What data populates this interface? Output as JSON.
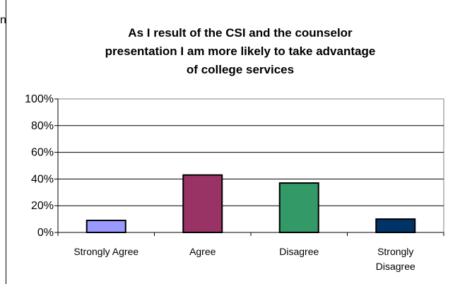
{
  "edge_text": "n",
  "chart_data": {
    "type": "bar",
    "title_lines": [
      "As I result of the CSI and the counselor",
      "presentation I am more likely to take advantage",
      "of college services"
    ],
    "categories": [
      [
        "Strongly Agree"
      ],
      [
        "Agree"
      ],
      [
        "Disagree"
      ],
      [
        "Strongly",
        "Disagree"
      ]
    ],
    "values": [
      0.09,
      0.43,
      0.37,
      0.1
    ],
    "ylim": [
      0,
      1
    ],
    "yticks": [
      {
        "value": 0,
        "label": "0%"
      },
      {
        "value": 0.2,
        "label": "20%"
      },
      {
        "value": 0.4,
        "label": "40%"
      },
      {
        "value": 0.6,
        "label": "60%"
      },
      {
        "value": 0.8,
        "label": "80%"
      },
      {
        "value": 1.0,
        "label": "100%"
      }
    ],
    "bar_colors": [
      "#9999ff",
      "#993366",
      "#339966",
      "#003366"
    ],
    "grid": true,
    "legend": "none"
  }
}
